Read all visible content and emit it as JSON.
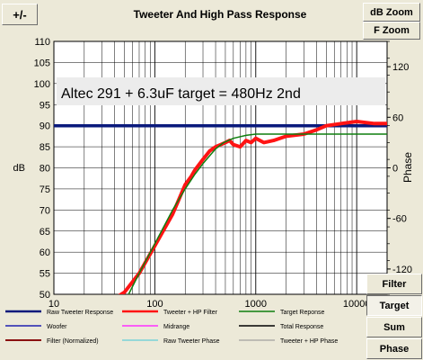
{
  "toolbar": {
    "plus_minus_label": "+/-",
    "db_zoom_label": "dB Zoom",
    "f_zoom_label": "F Zoom"
  },
  "side_tabs": [
    {
      "label": "Filter",
      "pressed": false
    },
    {
      "label": "Target",
      "pressed": true
    },
    {
      "label": "Sum",
      "pressed": false
    },
    {
      "label": "Phase",
      "pressed": false
    }
  ],
  "chart_data": {
    "type": "line",
    "title": "Tweeter  And High Pass Response",
    "annotation": "Altec 291 + 6.3uF  target = 480Hz 2nd",
    "xlabel": "",
    "ylabel": "dB",
    "y2label": "Phase",
    "xscale": "log",
    "xlim": [
      10,
      20000
    ],
    "ylim": [
      50,
      110
    ],
    "y2lim": [
      -150,
      150
    ],
    "x_ticks": [
      {
        "value": 10,
        "label": "10"
      },
      {
        "value": 100,
        "label": "100"
      },
      {
        "value": 1000,
        "label": "1000"
      },
      {
        "value": 10000,
        "label": "10000"
      }
    ],
    "y_ticks": [
      50,
      55,
      60,
      65,
      70,
      75,
      80,
      85,
      90,
      95,
      100,
      105,
      110
    ],
    "y2_ticks": [
      -120,
      -60,
      0,
      60,
      120
    ],
    "grid": true,
    "series": [
      {
        "name": "Raw Tweeter Response",
        "color": "#0a1a7c",
        "width": 3.5,
        "x": [
          10,
          20000
        ],
        "y": [
          90,
          90
        ]
      },
      {
        "name": "Tweeter + HP Filter",
        "color": "#ff1414",
        "width": 4,
        "x": [
          40,
          50,
          70,
          100,
          150,
          200,
          230,
          250,
          300,
          350,
          400,
          450,
          500,
          550,
          600,
          700,
          800,
          900,
          1000,
          1200,
          1500,
          2000,
          3000,
          4000,
          5000,
          7000,
          10000,
          15000,
          20000
        ],
        "y": [
          49,
          50.5,
          55,
          61.5,
          69,
          76,
          78,
          79.5,
          82,
          84,
          85,
          85.5,
          86,
          86.5,
          85.5,
          85,
          86.5,
          86,
          87,
          86,
          86.5,
          87.5,
          88,
          89,
          90,
          90.5,
          91,
          90.5,
          90.5
        ]
      },
      {
        "name": "Target Reponse",
        "color": "#0f7f0f",
        "width": 1.5,
        "x": [
          55,
          70,
          100,
          150,
          200,
          250,
          300,
          400,
          480,
          600,
          800,
          1000,
          1500,
          2000,
          5000,
          10000,
          20000
        ],
        "y": [
          50,
          55,
          62,
          70,
          75,
          78.5,
          81,
          84.5,
          86,
          87,
          87.7,
          88,
          88,
          88,
          88,
          88,
          88
        ]
      },
      {
        "name": "Woofer",
        "color": "#2020b0",
        "width": 1.5,
        "x": [],
        "y": []
      },
      {
        "name": "Midrange",
        "color": "#ff30ff",
        "width": 1.5,
        "x": [],
        "y": []
      },
      {
        "name": "Total Response",
        "color": "#000000",
        "width": 1.5,
        "x": [],
        "y": []
      },
      {
        "name": "Filter (Normalized)",
        "color": "#8b1010",
        "width": 2,
        "x": [],
        "y": []
      },
      {
        "name": "Raw Tweeter Phase",
        "color": "#40c8d8",
        "width": 1,
        "x": [],
        "y": []
      },
      {
        "name": "Tweeter + HP Phase",
        "color": "#909090",
        "width": 1,
        "x": [],
        "y": []
      }
    ]
  }
}
